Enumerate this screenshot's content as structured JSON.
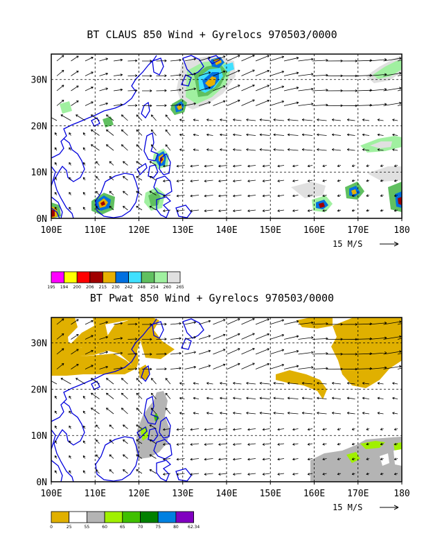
{
  "panels": [
    {
      "title": "BT CLAUS 850 Wind + Gyrelocs 970503/0000",
      "lat_labels": [
        "30N",
        "20N",
        "10N",
        "0N"
      ],
      "lon_labels": [
        "100E",
        "110E",
        "120E",
        "130E",
        "140E",
        "150E",
        "160E",
        "170E",
        "180"
      ],
      "vector_ref": "15 M/S",
      "legend": {
        "colors": [
          "#ff00ff",
          "#ffff00",
          "#ff0000",
          "#a00000",
          "#e8b000",
          "#0070e0",
          "#40e0ff",
          "#60c060",
          "#a0f0a0",
          "#e0e0e0"
        ],
        "labels": [
          "195",
          "194",
          "200",
          "206",
          "215",
          "230",
          "242",
          "248",
          "254",
          "260",
          "265"
        ]
      }
    },
    {
      "title": "BT Pwat 850 Wind + Gyrelocs 970503/0000",
      "lat_labels": [
        "30N",
        "20N",
        "10N",
        "0N"
      ],
      "lon_labels": [
        "100E",
        "110E",
        "120E",
        "130E",
        "140E",
        "150E",
        "160E",
        "170E",
        "180"
      ],
      "vector_ref": "15 M/S",
      "legend": {
        "colors": [
          "#e0b000",
          "#ffffff",
          "#b4b4b4",
          "#a0f000",
          "#40c000",
          "#008000",
          "#0080e0",
          "#8000c0"
        ],
        "labels": [
          "0",
          "25",
          "55",
          "60",
          "65",
          "70",
          "75",
          "80",
          "62.34"
        ]
      }
    }
  ]
}
